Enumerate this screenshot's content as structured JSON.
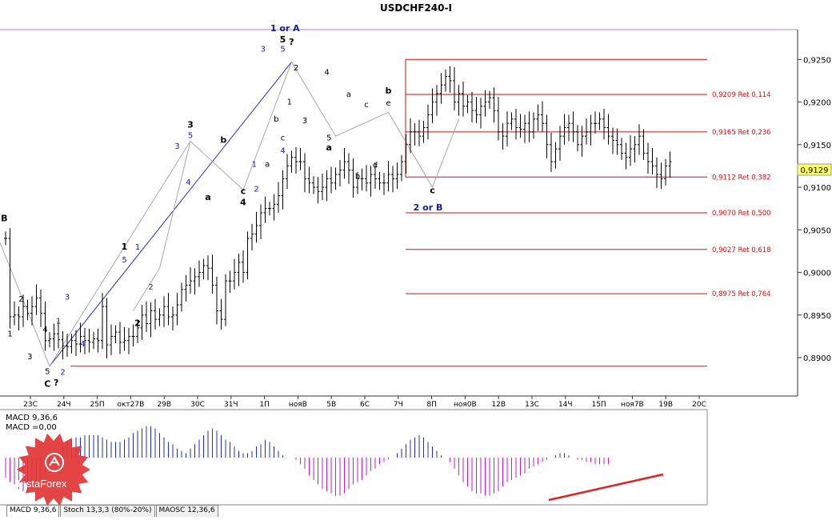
{
  "chart_title": "USDCHF240-I",
  "current_price": "0,9129",
  "price_axis": {
    "min": 0.8855,
    "max": 0.9285,
    "ticks": [
      "0,9250",
      "0,9200",
      "0,9150",
      "0,9100",
      "0,9050",
      "0,9000",
      "0,8950",
      "0,8900"
    ],
    "tick_values": [
      0.925,
      0.92,
      0.915,
      0.91,
      0.905,
      0.9,
      0.895,
      0.89
    ]
  },
  "time_axis": {
    "labels": [
      "23C",
      "24Ч",
      "25П",
      "окт27В",
      "29В",
      "30C",
      "31Ч",
      "1П",
      "нояВ",
      "5В",
      "6C",
      "7Ч",
      "8П",
      "ноя0В",
      "12В",
      "13C",
      "14Ч",
      "15П",
      "ноя7В",
      "19В",
      "20C"
    ]
  },
  "levels": [
    {
      "price": 0.925,
      "label": ""
    },
    {
      "price": 0.9209,
      "label": "0,9209 Ret 0,114"
    },
    {
      "price": 0.9165,
      "label": "0,9165 Ret 0,236"
    },
    {
      "price": 0.9112,
      "label": "0,9112 Ret 0,382"
    },
    {
      "price": 0.907,
      "label": "0,9070 Ret 0,500"
    },
    {
      "price": 0.9027,
      "label": "0,9027 Ret 0,618"
    },
    {
      "price": 0.8975,
      "label": "0,8975 Ret 0,764"
    },
    {
      "price": 0.889,
      "label": ""
    }
  ],
  "wave_labels": [
    {
      "text": "1 or A",
      "bar": 63.5,
      "price": 0.9283,
      "color": "#1020a0",
      "bold": true
    },
    {
      "text": "5",
      "bar": 63,
      "price": 0.927,
      "color": "#000000",
      "bold": true
    },
    {
      "text": "?",
      "bar": 65,
      "price": 0.9267,
      "color": "#000000",
      "bold": true
    },
    {
      "text": "5",
      "bar": 63,
      "price": 0.9259,
      "color": "#1020c0",
      "bold": false
    },
    {
      "text": "3",
      "bar": 58.5,
      "price": 0.9259,
      "color": "#1020c0",
      "bold": false
    },
    {
      "text": "2",
      "bar": 66,
      "price": 0.9237,
      "color": "#000000",
      "bold": false
    },
    {
      "text": "4",
      "bar": 73,
      "price": 0.9232,
      "color": "#000000",
      "bold": false
    },
    {
      "text": "1",
      "bar": 64.5,
      "price": 0.9197,
      "color": "#000000",
      "bold": false
    },
    {
      "text": "3",
      "bar": 68,
      "price": 0.9175,
      "color": "#000000",
      "bold": false
    },
    {
      "text": "a",
      "bar": 78,
      "price": 0.9206,
      "color": "#000000",
      "bold": false
    },
    {
      "text": "c",
      "bar": 82,
      "price": 0.9194,
      "color": "#000000",
      "bold": false
    },
    {
      "text": "b",
      "bar": 87,
      "price": 0.921,
      "color": "#000000",
      "bold": true
    },
    {
      "text": "e",
      "bar": 87,
      "price": 0.9196,
      "color": "#000000",
      "bold": false
    },
    {
      "text": "d",
      "bar": 84,
      "price": 0.9123,
      "color": "#000000",
      "bold": false
    },
    {
      "text": "b",
      "bar": 80,
      "price": 0.911,
      "color": "#000000",
      "bold": false
    },
    {
      "text": "5",
      "bar": 73.5,
      "price": 0.9155,
      "color": "#000000",
      "bold": false
    },
    {
      "text": "a",
      "bar": 73.5,
      "price": 0.9143,
      "color": "#000000",
      "bold": true
    },
    {
      "text": "c",
      "bar": 63,
      "price": 0.9155,
      "color": "#000000",
      "bold": false
    },
    {
      "text": "4",
      "bar": 63,
      "price": 0.914,
      "color": "#1020c0",
      "bold": false
    },
    {
      "text": "a",
      "bar": 59.5,
      "price": 0.9124,
      "color": "#000000",
      "bold": false
    },
    {
      "text": "b",
      "bar": 61.5,
      "price": 0.9177,
      "color": "#000000",
      "bold": false
    },
    {
      "text": "c",
      "bar": 97,
      "price": 0.9093,
      "color": "#000000",
      "bold": true
    },
    {
      "text": "2 or B",
      "bar": 96,
      "price": 0.9073,
      "color": "#1020a0",
      "bold": true
    },
    {
      "text": "3",
      "bar": 42,
      "price": 0.917,
      "color": "#000000",
      "bold": true
    },
    {
      "text": "5",
      "bar": 42,
      "price": 0.9158,
      "color": "#1020c0",
      "bold": false
    },
    {
      "text": "3",
      "bar": 39,
      "price": 0.9145,
      "color": "#1020c0",
      "bold": false
    },
    {
      "text": "4",
      "bar": 41.5,
      "price": 0.9103,
      "color": "#1020c0",
      "bold": false
    },
    {
      "text": "b",
      "bar": 49.5,
      "price": 0.9152,
      "color": "#000000",
      "bold": true
    },
    {
      "text": "a",
      "bar": 46,
      "price": 0.9085,
      "color": "#000000",
      "bold": true
    },
    {
      "text": "c",
      "bar": 54,
      "price": 0.9092,
      "color": "#000000",
      "bold": true
    },
    {
      "text": "4",
      "bar": 54,
      "price": 0.9079,
      "color": "#000000",
      "bold": true
    },
    {
      "text": "1",
      "bar": 56.5,
      "price": 0.9124,
      "color": "#1020c0",
      "bold": false
    },
    {
      "text": "2",
      "bar": 57,
      "price": 0.9095,
      "color": "#1020c0",
      "bold": false
    },
    {
      "text": "1",
      "bar": 27,
      "price": 0.9027,
      "color": "#000000",
      "bold": true
    },
    {
      "text": "5",
      "bar": 27,
      "price": 0.9012,
      "color": "#1020c0",
      "bold": false
    },
    {
      "text": "1",
      "bar": 30,
      "price": 0.9027,
      "color": "#1020c0",
      "bold": false
    },
    {
      "text": "2",
      "bar": 33,
      "price": 0.898,
      "color": "#1020c0",
      "bold": false
    },
    {
      "text": "2",
      "bar": 30,
      "price": 0.8937,
      "color": "#000000",
      "bold": true
    },
    {
      "text": "3",
      "bar": 14,
      "price": 0.8968,
      "color": "#1020c0",
      "bold": false
    },
    {
      "text": "1",
      "bar": 12,
      "price": 0.894,
      "color": "#1020c0",
      "bold": false
    },
    {
      "text": "4",
      "bar": 17.5,
      "price": 0.8913,
      "color": "#1020c0",
      "bold": false
    },
    {
      "text": "2",
      "bar": 13,
      "price": 0.888,
      "color": "#1020c0",
      "bold": false
    },
    {
      "text": "2",
      "bar": 3.5,
      "price": 0.8966,
      "color": "#000000",
      "bold": false
    },
    {
      "text": "1",
      "bar": 1,
      "price": 0.8925,
      "color": "#000000",
      "bold": false
    },
    {
      "text": "3",
      "bar": 5.5,
      "price": 0.8898,
      "color": "#000000",
      "bold": false
    },
    {
      "text": "4",
      "bar": 9,
      "price": 0.893,
      "color": "#000000",
      "bold": false
    },
    {
      "text": "5",
      "bar": 9.5,
      "price": 0.8881,
      "color": "#000000",
      "bold": false
    },
    {
      "text": "C",
      "bar": 9.5,
      "price": 0.8866,
      "color": "#000000",
      "bold": true
    },
    {
      "text": "?",
      "bar": 11.5,
      "price": 0.8867,
      "color": "#000000",
      "bold": true
    },
    {
      "text": "B",
      "bar": -0.3,
      "price": 0.906,
      "color": "#000000",
      "bold": true
    }
  ],
  "chart_data": {
    "type": "line",
    "title": "USDCHF240-I",
    "ylim": [
      0.8855,
      0.9285
    ],
    "closes": [
      0.904,
      0.8948,
      0.895,
      0.8948,
      0.896,
      0.8952,
      0.896,
      0.897,
      0.8952,
      0.892,
      0.8922,
      0.8928,
      0.8921,
      0.8914,
      0.8913,
      0.892,
      0.8916,
      0.8925,
      0.892,
      0.8918,
      0.8922,
      0.892,
      0.896,
      0.8915,
      0.8925,
      0.893,
      0.8918,
      0.892,
      0.8925,
      0.8925,
      0.8935,
      0.895,
      0.894,
      0.8955,
      0.8945,
      0.895,
      0.896,
      0.8948,
      0.895,
      0.8962,
      0.898,
      0.8985,
      0.899,
      0.8995,
      0.9,
      0.9008,
      0.9005,
      0.8985,
      0.8955,
      0.8945,
      0.899,
      0.899,
      0.9,
      0.9012,
      0.9,
      0.904,
      0.9045,
      0.9055,
      0.907,
      0.9075,
      0.9075,
      0.908,
      0.909,
      0.911,
      0.9125,
      0.9135,
      0.913,
      0.913,
      0.911,
      0.9105,
      0.91,
      0.9095,
      0.91,
      0.911,
      0.9105,
      0.9115,
      0.912,
      0.913,
      0.912,
      0.91,
      0.911,
      0.911,
      0.9105,
      0.9115,
      0.911,
      0.9105,
      0.9105,
      0.9115,
      0.911,
      0.9115,
      0.913,
      0.915,
      0.9165,
      0.9165,
      0.916,
      0.917,
      0.9185,
      0.92,
      0.921,
      0.922,
      0.923,
      0.9225,
      0.92,
      0.921,
      0.9195,
      0.92,
      0.919,
      0.9185,
      0.9195,
      0.92,
      0.9205,
      0.919,
      0.9165,
      0.916,
      0.9175,
      0.918,
      0.917,
      0.9168,
      0.9175,
      0.9165,
      0.918,
      0.9185,
      0.9175,
      0.915,
      0.913,
      0.9145,
      0.916,
      0.917,
      0.9175,
      0.9165,
      0.915,
      0.916,
      0.9165,
      0.9175,
      0.9175,
      0.918,
      0.917,
      0.916,
      0.9155,
      0.915,
      0.914,
      0.9135,
      0.9145,
      0.915,
      0.916,
      0.914,
      0.913,
      0.9125,
      0.9115,
      0.911,
      0.9125,
      0.913
    ],
    "macd": [
      -9,
      -11,
      -12,
      -14,
      -15,
      -15,
      -14,
      -13,
      -10,
      -7,
      -4,
      -1,
      2,
      5,
      7,
      8,
      9,
      9,
      10,
      10,
      10,
      10,
      9,
      8,
      7,
      7,
      7,
      8,
      9,
      11,
      12,
      13,
      14,
      14,
      13,
      11,
      9,
      7,
      6,
      4,
      3,
      2,
      4,
      6,
      8,
      10,
      12,
      13,
      12,
      10,
      8,
      7,
      5,
      3,
      2,
      2,
      3,
      5,
      6,
      8,
      7,
      5,
      3,
      1,
      0,
      0,
      -1,
      -3,
      -5,
      -8,
      -10,
      -12,
      -14,
      -15,
      -16,
      -17,
      -17,
      -16,
      -14,
      -12,
      -11,
      -10,
      -8,
      -6,
      -5,
      -3,
      -2,
      -1,
      0,
      2,
      4,
      6,
      8,
      9,
      10,
      9,
      7,
      5,
      3,
      1,
      0,
      -2,
      -5,
      -8,
      -11,
      -13,
      -15,
      -16,
      -16,
      -17,
      -17,
      -16,
      -15,
      -13,
      -11,
      -10,
      -9,
      -8,
      -7,
      -5,
      -4,
      -3,
      -2,
      -1,
      0,
      1,
      2,
      2,
      1,
      0,
      -1,
      -1,
      -2,
      -2,
      -3,
      -3,
      -3,
      -3
    ],
    "indicator_labels": [
      "MACD 9,36,6",
      "MACD =0,00"
    ],
    "indicator_tabs": [
      "MACD 9,36,6",
      "Stoch 13,3,3 (80%-20%)",
      "MAOSC 12,36,6"
    ],
    "brand": "InstaForex"
  }
}
